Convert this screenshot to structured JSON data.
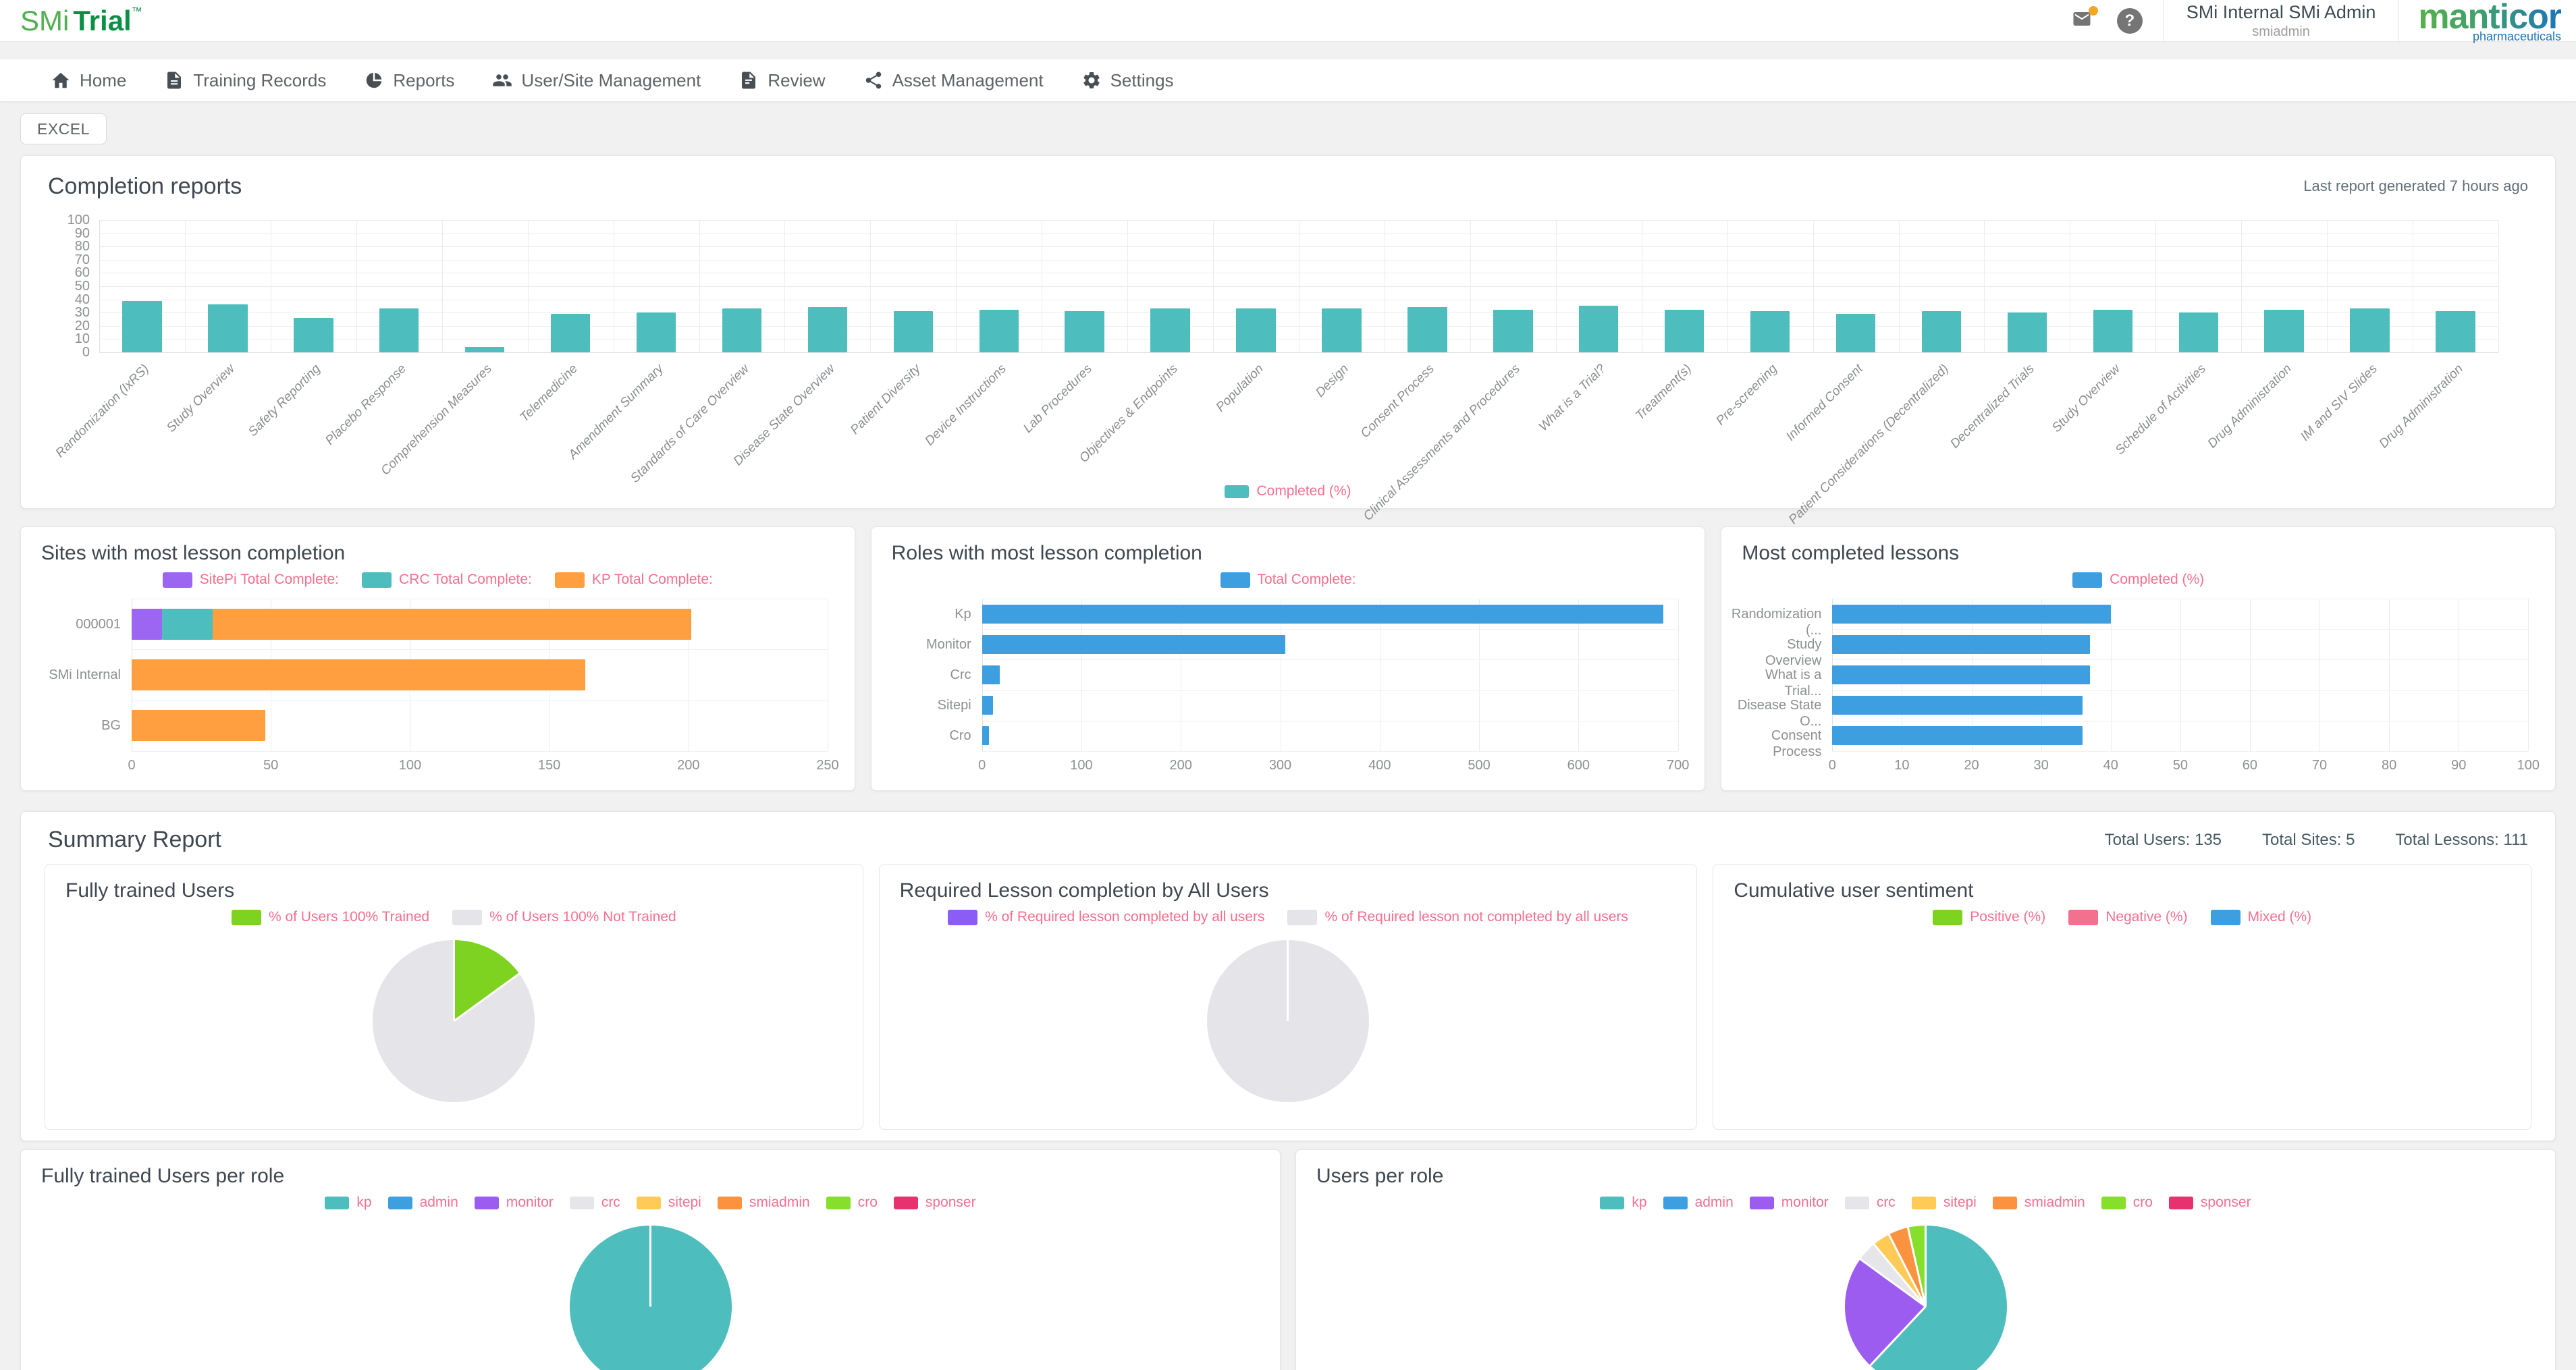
{
  "header": {
    "logo_smi": "SMi",
    "logo_trial": "Trial",
    "logo_tm": "™",
    "help_glyph": "?",
    "user_name": "SMi Internal SMi Admin",
    "user_role": "smiadmin",
    "brand": "manticor",
    "brand_sub": "pharmaceuticals",
    "notification_color": "#F5A623"
  },
  "nav": {
    "items": [
      {
        "label": "Home",
        "icon": "home-icon"
      },
      {
        "label": "Training Records",
        "icon": "training-records-icon"
      },
      {
        "label": "Reports",
        "icon": "reports-icon"
      },
      {
        "label": "User/Site Management",
        "icon": "users-icon"
      },
      {
        "label": "Review",
        "icon": "review-icon"
      },
      {
        "label": "Asset Management",
        "icon": "asset-management-icon"
      },
      {
        "label": "Settings",
        "icon": "settings-icon"
      }
    ]
  },
  "toolbar": {
    "excel_label": "EXCEL"
  },
  "panels": {
    "completion": {
      "title": "Completion reports",
      "last_report": "Last report generated 7 hours ago"
    },
    "sites": {
      "title": "Sites with most lesson completion"
    },
    "roles": {
      "title": "Roles with most lesson completion"
    },
    "lessons": {
      "title": "Most completed lessons"
    },
    "summary": {
      "title": "Summary Report",
      "totals": [
        "Total Users: 135",
        "Total Sites: 5",
        "Total Lessons: 111"
      ]
    },
    "fully_trained": {
      "title": "Fully trained Users"
    },
    "required": {
      "title": "Required Lesson completion by All Users"
    },
    "sentiment": {
      "title": "Cumulative user sentiment"
    },
    "ft_per_role": {
      "title": "Fully trained Users per role"
    },
    "users_per_role": {
      "title": "Users per role"
    }
  },
  "chart_data": [
    {
      "id": "completion-reports",
      "type": "bar",
      "orientation": "vertical",
      "title": "Completion reports",
      "legend": [
        {
          "label": "Completed (%)",
          "color": "#4DBDBE"
        }
      ],
      "legend_position": "bottom",
      "color": "#4DBDBE",
      "grid": true,
      "ylim": [
        0,
        100
      ],
      "ytick_step": 10,
      "categories": [
        "Randomization (IxRS)",
        "Study Overview",
        "Safety Reporting",
        "Placebo Response",
        "Comprehension Measures",
        "Telemedicine",
        "Amendment Summary",
        "Standards of Care Overview",
        "Disease State Overview",
        "Patient Diversity",
        "Device Instructions",
        "Lab Procedures",
        "Objectives & Endpoints",
        "Population",
        "Design",
        "Consent Process",
        "Clinical Assessments and Procedures",
        "What is a Trial?",
        "Treatment(s)",
        "Pre-screening",
        "Informed Consent",
        "Patient Considerations (Decentralized)",
        "Decentralized Trials",
        "Study Overview",
        "Schedule of Activities",
        "Drug Administration",
        "IM and SIV Slides",
        "Drug Administration"
      ],
      "values": [
        39,
        36,
        26,
        33,
        4,
        29,
        30,
        33,
        34,
        31,
        32,
        31,
        33,
        33,
        33,
        34,
        32,
        35,
        32,
        31,
        29,
        31,
        30,
        32,
        30,
        32,
        33,
        31
      ]
    },
    {
      "id": "sites-most-lesson-completion",
      "type": "bar",
      "orientation": "horizontal",
      "stacked": true,
      "title": "Sites with most lesson completion",
      "legend_position": "top",
      "grid": true,
      "xlim": [
        0,
        250
      ],
      "xtick_step": 50,
      "categories": [
        "000001",
        "SMi Internal",
        "BG"
      ],
      "series": [
        {
          "name": "SitePi Total Complete:",
          "color": "#9D66F2",
          "values": [
            11,
            0,
            0
          ]
        },
        {
          "name": "CRC Total Complete:",
          "color": "#4DBDBE",
          "values": [
            18,
            0,
            0
          ]
        },
        {
          "name": "KP Total Complete:",
          "color": "#FF9F40",
          "values": [
            172,
            163,
            48
          ]
        }
      ]
    },
    {
      "id": "roles-most-lesson-completion",
      "type": "bar",
      "orientation": "horizontal",
      "title": "Roles with most lesson completion",
      "legend": [
        {
          "label": "Total Complete:",
          "color": "#3E9FE0"
        }
      ],
      "legend_position": "top",
      "grid": true,
      "color": "#3E9FE0",
      "xlim": [
        0,
        700
      ],
      "xtick_step": 100,
      "categories": [
        "Kp",
        "Monitor",
        "Crc",
        "Sitepi",
        "Cro"
      ],
      "values": [
        685,
        305,
        18,
        11,
        7
      ]
    },
    {
      "id": "most-completed-lessons",
      "type": "bar",
      "orientation": "horizontal",
      "title": "Most completed lessons",
      "legend": [
        {
          "label": "Completed (%)",
          "color": "#3E9FE0"
        }
      ],
      "legend_position": "top",
      "grid": true,
      "color": "#3E9FE0",
      "xlim": [
        0,
        100
      ],
      "xtick_step": 10,
      "categories": [
        "Randomization (...",
        "Study Overview",
        "What is a Trial...",
        "Disease State O...",
        "Consent Process"
      ],
      "values": [
        40,
        37,
        37,
        36,
        36
      ]
    },
    {
      "id": "fully-trained-users",
      "type": "pie",
      "title": "Fully trained Users",
      "legend_position": "top",
      "slices": [
        {
          "label": "% of Users 100%  Trained",
          "color": "#7ED321",
          "value": 15
        },
        {
          "label": "%  of Users 100% Not Trained",
          "color": "#E4E4E9",
          "value": 85
        }
      ]
    },
    {
      "id": "required-lesson-completion-by-all-users",
      "type": "pie",
      "title": "Required Lesson completion by All Users",
      "legend_position": "top",
      "slices": [
        {
          "label": "% of Required lesson completed by all users",
          "color": "#8B5CF6",
          "value": 0
        },
        {
          "label": "% of Required lesson not completed by all users",
          "color": "#E4E4E9",
          "value": 100
        }
      ]
    },
    {
      "id": "cumulative-user-sentiment",
      "type": "pie",
      "empty": true,
      "title": "Cumulative user sentiment",
      "legend_position": "top",
      "slices": [
        {
          "label": "Positive (%)",
          "color": "#7ED321",
          "value": 0
        },
        {
          "label": "Negative (%)",
          "color": "#F4708F",
          "value": 0
        },
        {
          "label": "Mixed (%)",
          "color": "#3E9FE0",
          "value": 0
        }
      ]
    },
    {
      "id": "fully-trained-users-per-role",
      "type": "pie",
      "title": "Fully trained Users per role",
      "legend_position": "top",
      "slices": [
        {
          "label": "kp",
          "color": "#4DBDBE",
          "value": 100
        },
        {
          "label": "admin",
          "color": "#3E9FE0",
          "value": 0
        },
        {
          "label": "monitor",
          "color": "#9D5CF0",
          "value": 0
        },
        {
          "label": "crc",
          "color": "#E5E5EA",
          "value": 0
        },
        {
          "label": "sitepi",
          "color": "#FFCA55",
          "value": 0
        },
        {
          "label": "smiadmin",
          "color": "#FB9240",
          "value": 0
        },
        {
          "label": "cro",
          "color": "#86E02B",
          "value": 0
        },
        {
          "label": "sponser",
          "color": "#E8316F",
          "value": 0
        }
      ]
    },
    {
      "id": "users-per-role",
      "type": "pie",
      "title": "Users per role",
      "legend_position": "top",
      "slices": [
        {
          "label": "kp",
          "color": "#4DBDBE",
          "value": 62
        },
        {
          "label": "admin",
          "color": "#3E9FE0",
          "value": 0
        },
        {
          "label": "monitor",
          "color": "#9D5CF0",
          "value": 23
        },
        {
          "label": "crc",
          "color": "#E5E5EA",
          "value": 4
        },
        {
          "label": "sitepi",
          "color": "#FFCA55",
          "value": 3.5
        },
        {
          "label": "smiadmin",
          "color": "#FB9240",
          "value": 4
        },
        {
          "label": "cro",
          "color": "#86E02B",
          "value": 3.5
        },
        {
          "label": "sponser",
          "color": "#E8316F",
          "value": 0
        }
      ]
    }
  ]
}
